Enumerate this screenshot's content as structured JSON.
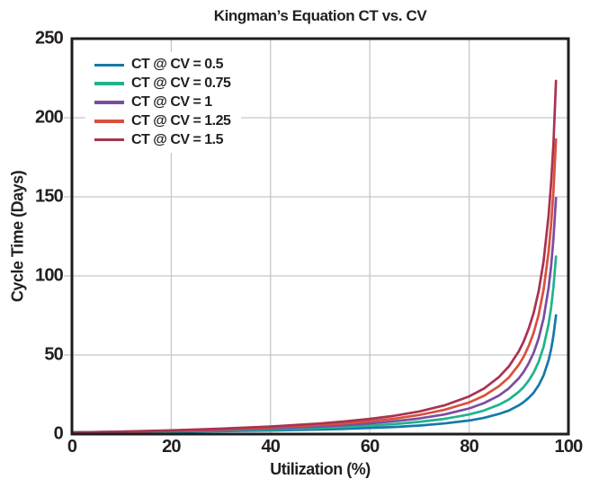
{
  "styles": {
    "background": "#ffffff",
    "grid_color": "#c6c7c9",
    "axis_color": "#1d1d1f",
    "text_color": "#231f20"
  },
  "chart_data": {
    "type": "line",
    "title": "Kingman’s Equation CT vs. CV",
    "xlabel": "Utilization (%)",
    "ylabel": "Cycle Time (Days)",
    "xlim": [
      0,
      100
    ],
    "ylim": [
      0,
      250
    ],
    "xticks": [
      0,
      20,
      40,
      60,
      80,
      100
    ],
    "yticks": [
      0,
      50,
      100,
      150,
      200,
      250
    ],
    "grid": true,
    "legend_position": "top-left",
    "x": [
      0,
      10,
      20,
      30,
      40,
      50,
      55,
      60,
      65,
      70,
      75,
      80,
      83,
      86,
      88,
      90,
      91,
      92,
      93,
      94,
      95,
      96,
      96.5,
      97,
      97.5
    ],
    "series": [
      {
        "name": "CT @ CV = 0.5",
        "color": "#1778a8",
        "values": [
          1.0,
          1.2,
          1.5,
          1.8,
          2.3,
          2.9,
          3.3,
          3.9,
          4.5,
          5.4,
          6.7,
          8.6,
          10.3,
          12.7,
          14.9,
          18.1,
          20.2,
          22.9,
          26.2,
          30.8,
          37.1,
          46.6,
          53.4,
          62.4,
          75.1
        ]
      },
      {
        "name": "CT @ CV = 0.75",
        "color": "#20b38c",
        "values": [
          1.0,
          1.3,
          1.7,
          2.2,
          2.9,
          3.9,
          4.5,
          5.3,
          6.3,
          7.7,
          9.6,
          12.4,
          14.9,
          18.5,
          21.9,
          26.7,
          29.8,
          33.8,
          38.9,
          45.7,
          55.2,
          69.4,
          79.6,
          93.2,
          112.2
        ]
      },
      {
        "name": "CT @ CV = 1",
        "color": "#7b4da2",
        "values": [
          1.0,
          1.4,
          2.0,
          2.6,
          3.5,
          4.8,
          5.6,
          6.7,
          8.1,
          9.9,
          12.4,
          16.2,
          19.6,
          24.3,
          28.9,
          35.2,
          39.4,
          44.7,
          51.5,
          60.5,
          73.2,
          92.2,
          105.8,
          123.9,
          149.3
        ]
      },
      {
        "name": "CT @ CV = 1.25",
        "color": "#d9503c",
        "values": [
          1.0,
          1.5,
          2.2,
          3.0,
          4.2,
          5.8,
          6.8,
          8.1,
          9.8,
          12.1,
          15.3,
          20.0,
          24.2,
          30.2,
          35.8,
          43.8,
          49.0,
          55.6,
          64.1,
          75.4,
          91.3,
          115.0,
          132.0,
          153.6,
          186.3
        ]
      },
      {
        "name": "CT @ CV = 1.5",
        "color": "#a83351",
        "values": [
          1.0,
          1.6,
          2.4,
          3.4,
          4.8,
          6.7,
          8.0,
          9.6,
          11.6,
          14.3,
          18.1,
          23.8,
          28.8,
          36.0,
          42.8,
          52.3,
          58.6,
          66.6,
          76.7,
          90.3,
          109.3,
          137.8,
          158.2,
          183.9,
          223.3
        ]
      }
    ]
  }
}
